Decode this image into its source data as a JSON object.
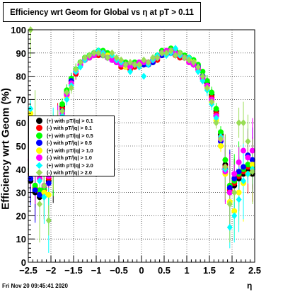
{
  "chart_data": {
    "type": "scatter",
    "title": "Efficiency wrt Geom for Global vs   η at pT > 0.11",
    "xlabel": "η",
    "ylabel": "Efficiency wrt Geom (%)",
    "xlim": [
      -2.5,
      2.5
    ],
    "ylim": [
      0,
      100
    ],
    "x_ticks": [
      "−2.5",
      "−2",
      "−1.5",
      "−1",
      "−0.5",
      "0",
      "0.5",
      "1",
      "1.5",
      "2",
      "2.5"
    ],
    "y_ticks": [
      "0",
      "10",
      "20",
      "30",
      "40",
      "50",
      "60",
      "70",
      "80",
      "90",
      "100"
    ],
    "grid": true,
    "legend_position": "center-left",
    "x": [
      -2.45,
      -2.35,
      -2.25,
      -2.15,
      -2.05,
      -1.95,
      -1.85,
      -1.75,
      -1.65,
      -1.55,
      -1.45,
      -1.35,
      -1.25,
      -1.15,
      -1.05,
      -0.95,
      -0.85,
      -0.75,
      -0.65,
      -0.55,
      -0.45,
      -0.35,
      -0.25,
      -0.15,
      -0.05,
      0.05,
      0.15,
      0.25,
      0.35,
      0.45,
      0.55,
      0.65,
      0.75,
      0.85,
      0.95,
      1.05,
      1.15,
      1.25,
      1.35,
      1.45,
      1.55,
      1.65,
      1.75,
      1.85,
      1.95,
      2.05,
      2.15,
      2.25,
      2.35,
      2.45
    ],
    "series": [
      {
        "name": "(+) with pT/|q| > 0.1",
        "color": "#000000",
        "marker": "circle",
        "values": [
          35,
          30,
          28,
          30,
          35,
          42,
          58,
          67,
          73,
          78,
          82,
          85,
          87,
          88,
          89,
          90,
          90,
          89,
          87,
          86,
          85,
          84,
          84,
          85,
          85,
          85,
          85,
          86,
          88,
          90,
          90,
          91,
          90,
          89,
          88,
          87,
          86,
          84,
          80,
          77,
          72,
          65,
          55,
          42,
          30,
          33,
          36,
          38,
          40,
          38
        ]
      },
      {
        "name": "(-) with pT/|q| > 0.1",
        "color": "#ff0000",
        "marker": "circle",
        "values": [
          38,
          32,
          30,
          31,
          36,
          43,
          57,
          66,
          72,
          77,
          81,
          85,
          87,
          88,
          89,
          89,
          90,
          88,
          87,
          86,
          84,
          84,
          83,
          84,
          85,
          85,
          86,
          86,
          87,
          89,
          90,
          90,
          89,
          88,
          88,
          86,
          85,
          83,
          80,
          76,
          71,
          64,
          54,
          41,
          31,
          34,
          37,
          39,
          41,
          40
        ]
      },
      {
        "name": "(+) with pT/|q| > 0.5",
        "color": "#00ff00",
        "marker": "circle",
        "values": [
          40,
          33,
          31,
          32,
          38,
          45,
          59,
          68,
          74,
          79,
          83,
          86,
          88,
          89,
          90,
          91,
          91,
          90,
          88,
          87,
          86,
          86,
          85,
          86,
          86,
          86,
          86,
          87,
          89,
          91,
          91,
          92,
          91,
          90,
          89,
          88,
          87,
          85,
          82,
          78,
          73,
          66,
          56,
          44,
          33,
          35,
          38,
          40,
          42,
          41
        ]
      },
      {
        "name": "(-) with pT/|q| > 0.5",
        "color": "#0000ff",
        "marker": "circle",
        "values": [
          36,
          31,
          29,
          30,
          34,
          44,
          56,
          65,
          72,
          78,
          82,
          85,
          87,
          88,
          89,
          90,
          89,
          88,
          87,
          86,
          85,
          84,
          84,
          85,
          85,
          85,
          85,
          86,
          88,
          89,
          90,
          90,
          90,
          89,
          88,
          87,
          85,
          84,
          80,
          76,
          70,
          63,
          52,
          40,
          32,
          36,
          39,
          41,
          46,
          44
        ]
      },
      {
        "name": "(+) with pT/|q| > 1.0",
        "color": "#ffff00",
        "marker": "circle",
        "values": [
          64,
          45,
          36,
          30,
          29,
          48,
          55,
          64,
          71,
          77,
          82,
          85,
          87,
          88,
          89,
          90,
          90,
          89,
          88,
          87,
          85,
          84,
          84,
          85,
          85,
          86,
          86,
          87,
          88,
          90,
          90,
          91,
          90,
          89,
          88,
          87,
          86,
          83,
          79,
          75,
          69,
          61,
          50,
          38,
          26,
          22,
          30,
          34,
          38,
          42
        ]
      },
      {
        "name": "(-) with pT/|q| > 1.0",
        "color": "#ff00ff",
        "marker": "circle",
        "values": [
          44,
          39,
          36,
          33,
          37,
          45,
          56,
          64,
          72,
          77,
          82,
          85,
          87,
          88,
          89,
          90,
          90,
          88,
          87,
          86,
          85,
          85,
          84,
          85,
          86,
          86,
          86,
          87,
          88,
          90,
          91,
          91,
          90,
          89,
          88,
          86,
          85,
          83,
          79,
          76,
          70,
          63,
          53,
          39,
          30,
          38,
          43,
          48,
          45,
          48
        ]
      },
      {
        "name": "(+) with pT/|q| > 2.0",
        "color": "#00ffff",
        "marker": "diamond",
        "values": [
          66,
          48,
          35,
          28,
          18,
          50,
          53,
          63,
          70,
          76,
          82,
          84,
          87,
          89,
          90,
          91,
          90,
          88,
          89,
          87,
          86,
          85,
          82,
          85,
          84,
          80,
          85,
          87,
          89,
          90,
          89,
          90,
          92,
          89,
          88,
          88,
          86,
          82,
          78,
          74,
          68,
          62,
          54,
          40,
          15,
          20,
          27,
          35,
          38,
          40
        ]
      },
      {
        "name": "(-) with pT/|q| > 2.0",
        "color": "#99dd55",
        "marker": "diamond",
        "values": [
          100,
          60,
          25,
          33,
          18,
          40,
          54,
          65,
          73,
          75,
          83,
          86,
          88,
          89,
          90,
          90,
          89,
          88,
          90,
          88,
          87,
          85,
          86,
          85,
          85,
          87,
          86,
          88,
          88,
          90,
          90,
          91,
          89,
          90,
          88,
          87,
          86,
          84,
          80,
          75,
          69,
          60,
          53,
          41,
          25,
          30,
          60,
          60,
          52,
          39
        ]
      }
    ]
  },
  "footer": {
    "timestamp": "Fri Nov 20 09:45:41 2020"
  }
}
